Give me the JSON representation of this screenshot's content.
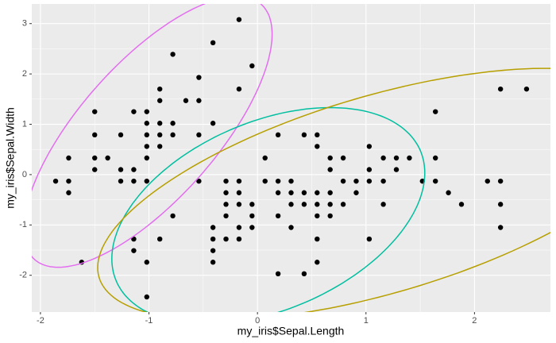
{
  "chart_data": {
    "type": "scatter",
    "x_label": "my_iris$Sepal.Length",
    "y_label": "my_iris$Sepal.Width",
    "xlim": [
      -2.08,
      2.7
    ],
    "ylim": [
      -2.73,
      3.39
    ],
    "xticks": [
      -2,
      -1,
      0,
      1,
      2
    ],
    "yticks": [
      -2,
      -1,
      0,
      1,
      2,
      3
    ],
    "grid": true,
    "point_color": "#000000",
    "x": [
      -0.9,
      -1.14,
      -1.38,
      -1.5,
      -1.02,
      -0.54,
      -1.5,
      -1.02,
      -1.74,
      -1.14,
      -0.54,
      -1.26,
      -1.26,
      -1.86,
      -0.05,
      -0.17,
      -0.17,
      -0.9,
      -0.54,
      -0.9,
      -1.5,
      -0.9,
      -1.02,
      -0.78,
      -0.78,
      -1.26,
      -0.78,
      -0.41,
      -1.02,
      -0.41,
      -1.14,
      -1.74,
      -0.9,
      -1.02,
      -1.62,
      -1.74,
      -1.5,
      -0.66,
      -1.02,
      1.4,
      0.67,
      1.28,
      -0.41,
      0.79,
      -0.17,
      0.55,
      -1.14,
      0.91,
      -0.78,
      -1.02,
      0.07,
      0.19,
      0.31,
      -0.29,
      1.03,
      -0.29,
      -0.05,
      0.43,
      -0.29,
      0.07,
      0.31,
      0.55,
      0.67,
      0.91,
      1.16,
      1.03,
      0.19,
      -0.17,
      -0.41,
      0.19,
      -0.54,
      0.19,
      0.55,
      -0.41,
      -0.41,
      0.31,
      -0.05,
      -1.02,
      -0.29,
      -0.17,
      -0.17,
      0.43,
      -0.9,
      1.52,
      0.55,
      0.79,
      2.12,
      -1.14,
      1.76,
      1.03,
      1.64,
      0.79,
      0.67,
      1.16,
      -0.17,
      -0.05,
      2.24,
      2.24,
      1.28,
      -0.29,
      2.24,
      0.55,
      1.03,
      1.64,
      0.43,
      0.67,
      1.64,
      1.88,
      2.48,
      0.55,
      0.31,
      2.24,
      0.55,
      0.67,
      0.19,
      1.16,
      0.43
    ],
    "y": [
      1.02,
      -0.13,
      0.33,
      0.1,
      1.25,
      1.93,
      0.79,
      0.79,
      -0.36,
      0.1,
      1.47,
      0.79,
      -0.13,
      -0.13,
      2.16,
      3.08,
      1.7,
      1.7,
      0.79,
      1.47,
      1.25,
      0.56,
      -0.13,
      1.02,
      0.79,
      0.1,
      2.39,
      2.62,
      0.33,
      1.02,
      1.25,
      -0.13,
      0.79,
      1.02,
      -1.74,
      0.33,
      0.33,
      1.47,
      0.56,
      0.33,
      0.33,
      0.1,
      -1.74,
      -0.59,
      -0.59,
      0.56,
      -1.51,
      -0.36,
      -0.82,
      -2.43,
      -0.13,
      -1.97,
      -0.36,
      -0.36,
      0.1,
      -0.13,
      -0.82,
      -1.97,
      -1.28,
      0.33,
      -0.59,
      -1.28,
      -0.36,
      -0.13,
      -0.59,
      -0.13,
      -0.36,
      -1.05,
      -1.51,
      -0.82,
      -0.13,
      0.79,
      -1.74,
      -1.28,
      -1.05,
      -0.13,
      -1.05,
      -1.74,
      -0.82,
      -0.13,
      -0.36,
      -0.36,
      -1.28,
      -0.13,
      -0.36,
      -0.13,
      -0.13,
      -1.28,
      -0.36,
      -1.28,
      1.25,
      0.33,
      -0.82,
      -0.13,
      -1.28,
      -0.59,
      1.7,
      -1.05,
      0.33,
      -0.59,
      -0.59,
      -0.82,
      0.56,
      0.33,
      -0.59,
      -0.59,
      -0.13,
      -0.59,
      1.7,
      -0.59,
      -1.05,
      -0.13,
      0.79,
      0.1,
      -0.13,
      0.33,
      0.79
    ],
    "ellipses": [
      {
        "color": "#E36EF0",
        "center": [
          -1.01,
          0.85
        ],
        "a": [
          1.043,
          2.537
        ],
        "b": [
          0.472,
          -0.897
        ]
      },
      {
        "color": "#00BFA0",
        "center": [
          0.1,
          -0.82
        ],
        "a": [
          1.442,
          0.853
        ],
        "b": [
          0,
          -1.975
        ]
      },
      {
        "color": "#B79F00",
        "center": [
          1.14,
          -0.39
        ],
        "a": [
          2.6,
          1.65
        ],
        "b": [
          0.256,
          -1.88
        ]
      }
    ]
  }
}
